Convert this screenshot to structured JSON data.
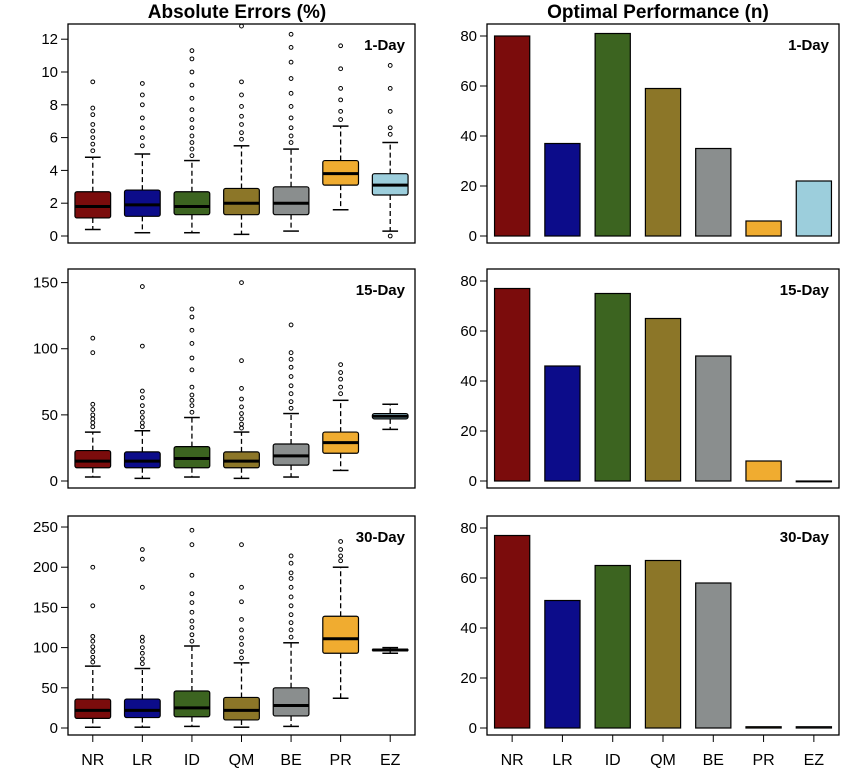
{
  "column_titles": {
    "left": "Absolute Errors (%)",
    "right": "Optimal Performance (n)"
  },
  "categories": [
    "NR",
    "LR",
    "ID",
    "QM",
    "BE",
    "PR",
    "EZ"
  ],
  "colors": {
    "NR": "#7b0c0c",
    "LR": "#0c0c8a",
    "ID": "#3c6420",
    "QM": "#8c7628",
    "BE": "#8a8e8e",
    "PR": "#f0ac30",
    "EZ": "#9ccedc"
  },
  "chart_data": [
    {
      "type": "box",
      "panel_label": "1-Day",
      "ylim": [
        0,
        12.5
      ],
      "yticks": [
        0,
        2,
        4,
        6,
        8,
        10,
        12
      ],
      "boxes": [
        {
          "category": "NR",
          "whisker_low": 0.4,
          "q1": 1.1,
          "median": 1.8,
          "q3": 2.7,
          "whisker_high": 4.8,
          "outliers": [
            5.2,
            5.6,
            6.0,
            6.4,
            6.8,
            7.4,
            7.8,
            9.4
          ]
        },
        {
          "category": "LR",
          "whisker_low": 0.2,
          "q1": 1.2,
          "median": 1.9,
          "q3": 2.8,
          "whisker_high": 5.0,
          "outliers": [
            5.5,
            6.0,
            6.6,
            7.2,
            8.0,
            8.6,
            9.3
          ]
        },
        {
          "category": "ID",
          "whisker_low": 0.2,
          "q1": 1.3,
          "median": 1.8,
          "q3": 2.7,
          "whisker_high": 4.6,
          "outliers": [
            4.9,
            5.3,
            5.7,
            6.1,
            6.6,
            7.1,
            7.7,
            8.4,
            9.2,
            10.0,
            10.8,
            11.3
          ]
        },
        {
          "category": "QM",
          "whisker_low": 0.1,
          "q1": 1.3,
          "median": 2.0,
          "q3": 2.9,
          "whisker_high": 5.5,
          "outliers": [
            5.9,
            6.3,
            6.8,
            7.3,
            7.9,
            8.6,
            9.4,
            12.8
          ]
        },
        {
          "category": "BE",
          "whisker_low": 0.3,
          "q1": 1.3,
          "median": 2.0,
          "q3": 3.0,
          "whisker_high": 5.3,
          "outliers": [
            5.7,
            6.1,
            6.6,
            7.2,
            7.9,
            8.7,
            9.6,
            10.6,
            11.5,
            12.3
          ]
        },
        {
          "category": "PR",
          "whisker_low": 1.6,
          "q1": 3.1,
          "median": 3.8,
          "q3": 4.6,
          "whisker_high": 6.7,
          "outliers": [
            7.1,
            7.6,
            8.3,
            9.0,
            10.2,
            11.6
          ]
        },
        {
          "category": "EZ",
          "whisker_low": 0.3,
          "q1": 2.5,
          "median": 3.1,
          "q3": 3.8,
          "whisker_high": 5.7,
          "outliers": [
            0.0,
            6.2,
            6.6,
            7.6,
            9.0,
            10.4
          ]
        }
      ]
    },
    {
      "type": "bar",
      "panel_label": "1-Day",
      "ylim": [
        0,
        82
      ],
      "yticks": [
        0,
        20,
        40,
        60,
        80
      ],
      "values": [
        80,
        37,
        81,
        59,
        35,
        6,
        22
      ]
    },
    {
      "type": "box",
      "panel_label": "15-Day",
      "ylim": [
        0,
        155
      ],
      "yticks": [
        0,
        50,
        100,
        150
      ],
      "boxes": [
        {
          "category": "NR",
          "whisker_low": 3,
          "q1": 10,
          "median": 15,
          "q3": 23,
          "whisker_high": 37,
          "outliers": [
            41,
            44,
            47,
            50,
            54,
            58,
            97,
            108
          ]
        },
        {
          "category": "LR",
          "whisker_low": 2,
          "q1": 10,
          "median": 15,
          "q3": 22,
          "whisker_high": 38,
          "outliers": [
            41,
            44,
            48,
            52,
            57,
            63,
            68,
            102,
            147
          ]
        },
        {
          "category": "ID",
          "whisker_low": 3,
          "q1": 10,
          "median": 17,
          "q3": 26,
          "whisker_high": 48,
          "outliers": [
            52,
            57,
            61,
            65,
            71,
            84,
            93,
            104,
            114,
            124,
            130
          ]
        },
        {
          "category": "QM",
          "whisker_low": 2,
          "q1": 10,
          "median": 15,
          "q3": 22,
          "whisker_high": 37,
          "outliers": [
            40,
            43,
            47,
            51,
            56,
            62,
            70,
            91,
            150
          ]
        },
        {
          "category": "BE",
          "whisker_low": 3,
          "q1": 12,
          "median": 19,
          "q3": 28,
          "whisker_high": 51,
          "outliers": [
            55,
            60,
            66,
            72,
            79,
            86,
            92,
            97,
            118
          ]
        },
        {
          "category": "PR",
          "whisker_low": 8,
          "q1": 21,
          "median": 29,
          "q3": 37,
          "whisker_high": 61,
          "outliers": [
            66,
            71,
            77,
            82,
            88
          ]
        },
        {
          "category": "EZ",
          "whisker_low": 39,
          "q1": 47,
          "median": 49,
          "q3": 51,
          "whisker_high": 58,
          "outliers": []
        }
      ]
    },
    {
      "type": "bar",
      "panel_label": "15-Day",
      "ylim": [
        0,
        82
      ],
      "yticks": [
        0,
        20,
        40,
        60,
        80
      ],
      "values": [
        77,
        46,
        75,
        65,
        50,
        8,
        0
      ]
    },
    {
      "type": "box",
      "panel_label": "30-Day",
      "ylim": [
        0,
        255
      ],
      "yticks": [
        0,
        50,
        100,
        150,
        200,
        250
      ],
      "boxes": [
        {
          "category": "NR",
          "whisker_low": 1,
          "q1": 12,
          "median": 22,
          "q3": 36,
          "whisker_high": 77,
          "outliers": [
            82,
            88,
            95,
            101,
            108,
            114,
            152,
            200
          ]
        },
        {
          "category": "LR",
          "whisker_low": 1,
          "q1": 13,
          "median": 22,
          "q3": 36,
          "whisker_high": 74,
          "outliers": [
            80,
            86,
            93,
            100,
            108,
            113,
            175,
            210,
            222
          ]
        },
        {
          "category": "ID",
          "whisker_low": 2,
          "q1": 14,
          "median": 25,
          "q3": 46,
          "whisker_high": 102,
          "outliers": [
            108,
            116,
            125,
            133,
            144,
            156,
            167,
            190,
            228,
            246
          ]
        },
        {
          "category": "QM",
          "whisker_low": 1,
          "q1": 10,
          "median": 22,
          "q3": 38,
          "whisker_high": 81,
          "outliers": [
            87,
            95,
            104,
            112,
            122,
            135,
            157,
            175,
            228
          ]
        },
        {
          "category": "BE",
          "whisker_low": 2,
          "q1": 15,
          "median": 28,
          "q3": 50,
          "whisker_high": 106,
          "outliers": [
            113,
            122,
            131,
            141,
            152,
            163,
            175,
            186,
            193,
            205,
            214
          ]
        },
        {
          "category": "PR",
          "whisker_low": 37,
          "q1": 93,
          "median": 111,
          "q3": 139,
          "whisker_high": 200,
          "outliers": [
            208,
            214,
            222,
            232
          ]
        },
        {
          "category": "EZ",
          "whisker_low": 93,
          "q1": 96,
          "median": 97,
          "q3": 98,
          "whisker_high": 100,
          "outliers": []
        }
      ]
    },
    {
      "type": "bar",
      "panel_label": "30-Day",
      "ylim": [
        0,
        82
      ],
      "yticks": [
        0,
        20,
        40,
        60,
        80
      ],
      "values": [
        77,
        51,
        65,
        67,
        58,
        0.5,
        0.5
      ]
    }
  ]
}
